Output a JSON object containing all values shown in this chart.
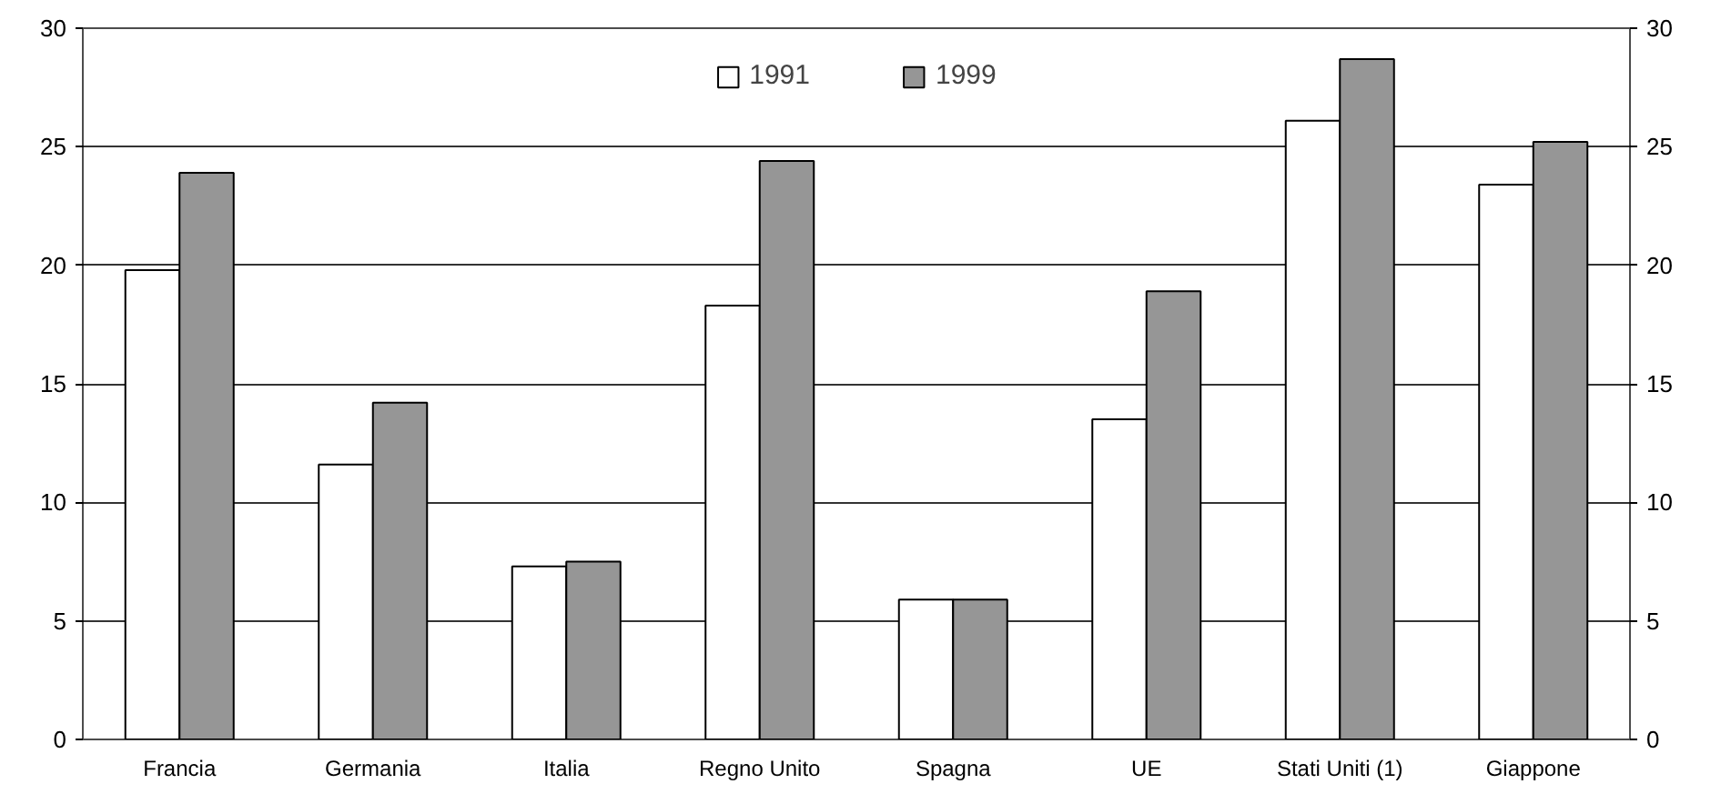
{
  "chart_data": {
    "type": "bar",
    "categories": [
      "Francia",
      "Germania",
      "Italia",
      "Regno Unito",
      "Spagna",
      "UE",
      "Stati Uniti (1)",
      "Giappone"
    ],
    "series": [
      {
        "name": "1991",
        "color": "#ffffff",
        "values": [
          19.8,
          11.6,
          7.3,
          18.3,
          5.9,
          13.5,
          26.1,
          23.4
        ]
      },
      {
        "name": "1999",
        "color": "#969696",
        "values": [
          23.9,
          14.2,
          7.5,
          24.4,
          5.9,
          18.9,
          28.7,
          25.2
        ]
      }
    ],
    "ylim": [
      0,
      30
    ],
    "yticks": [
      0,
      5,
      10,
      15,
      20,
      25,
      30
    ],
    "y2lim": [
      0,
      30
    ],
    "y2ticks": [
      0,
      5,
      10,
      15,
      20,
      25,
      30
    ],
    "grid": "y",
    "legend": "top"
  }
}
